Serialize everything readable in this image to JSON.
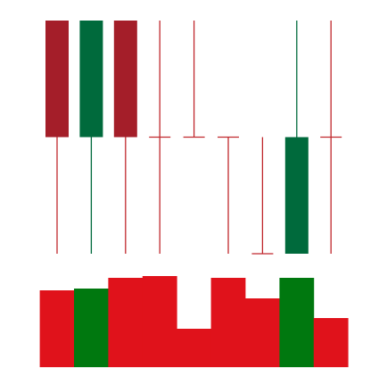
{
  "colors": {
    "up": "#006a3c",
    "down": "#a41e29",
    "down_wick": "#c0282d",
    "volume_up": "#00780f",
    "volume_down": "#e0121b",
    "background": "#ffffff"
  },
  "chart_data": [
    {
      "type": "candlestick",
      "title": "",
      "xlabel": "",
      "ylabel": "",
      "grid": false,
      "legend": "none",
      "ylim": [
        0,
        100
      ],
      "candles": [
        {
          "open": 100,
          "high": 100,
          "low": 0,
          "close": 50
        },
        {
          "open": 50,
          "high": 100,
          "low": 0,
          "close": 100
        },
        {
          "open": 100,
          "high": 100,
          "low": 0,
          "close": 50
        },
        {
          "open": 50,
          "high": 100,
          "low": 0,
          "close": 50
        },
        {
          "open": 50,
          "high": 100,
          "low": 50,
          "close": 50
        },
        {
          "open": 50,
          "high": 50,
          "low": 0,
          "close": 50
        },
        {
          "open": 0,
          "high": 50,
          "low": 0,
          "close": 0
        },
        {
          "open": 0,
          "high": 100,
          "low": 0,
          "close": 50
        },
        {
          "open": 50,
          "high": 100,
          "low": 0,
          "close": 50
        }
      ]
    },
    {
      "type": "bar",
      "title": "",
      "xlabel": "",
      "ylabel": "",
      "grid": false,
      "legend": "none",
      "ylim": [
        0,
        100
      ],
      "values": [
        86,
        88,
        100,
        102,
        43,
        100,
        77,
        100,
        55
      ],
      "directions": [
        "down",
        "up",
        "down",
        "down",
        "down",
        "down",
        "down",
        "up",
        "down"
      ]
    }
  ]
}
